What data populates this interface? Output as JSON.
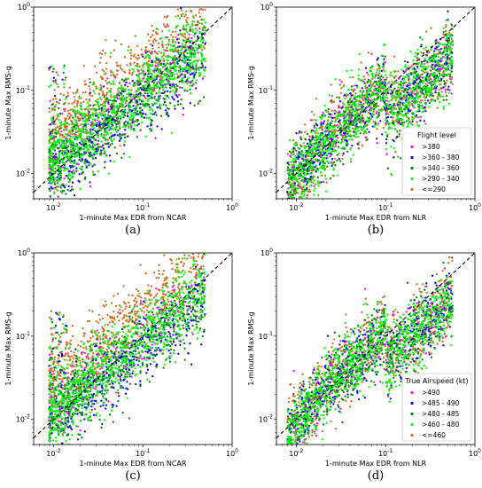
{
  "chart_data": [
    {
      "id": "a",
      "type": "scatter",
      "panel_label": "(a)",
      "xlabel": "1-minute Max EDR from NCAR",
      "ylabel": "1-minute Max RMS-g",
      "xscale": "log",
      "yscale": "log",
      "xlim": [
        0.006,
        1
      ],
      "ylim": [
        0.005,
        1
      ],
      "x_tick_labels": [
        "10^-2",
        "10^-1",
        "10^0"
      ],
      "y_tick_labels": [
        "10^-2",
        "10^-1",
        "10^0"
      ],
      "reference_line": "y = x (dashed black)",
      "legend": null,
      "series": [
        {
          "name": ">380",
          "color": "#ff00ff"
        },
        {
          "name": ">360 - 380",
          "color": "#0000ff"
        },
        {
          "name": ">340 - 360",
          "color": "#008000"
        },
        {
          "name": ">290 - 340",
          "color": "#00ff00"
        },
        {
          "name": "<=290",
          "color": "#d2691e"
        }
      ]
    },
    {
      "id": "b",
      "type": "scatter",
      "panel_label": "(b)",
      "xlabel": "1-minute Max EDR from NLR",
      "ylabel": "1-minute Max RMS-g",
      "xscale": "log",
      "yscale": "log",
      "xlim": [
        0.006,
        1
      ],
      "ylim": [
        0.005,
        1
      ],
      "x_tick_labels": [
        "10^-2",
        "10^-1",
        "10^0"
      ],
      "y_tick_labels": [
        "10^-2",
        "10^-1",
        "10^0"
      ],
      "reference_line": "y = x (dashed black)",
      "legend": {
        "title": "Flight level",
        "placement": "lower-right",
        "entries": [
          ">380",
          ">360 - 380",
          ">340 - 360",
          ">290 - 340",
          "<=290"
        ]
      },
      "series": [
        {
          "name": ">380",
          "color": "#ff00ff"
        },
        {
          "name": ">360 - 380",
          "color": "#0000ff"
        },
        {
          "name": ">340 - 360",
          "color": "#008000"
        },
        {
          "name": ">290 - 340",
          "color": "#00ff00"
        },
        {
          "name": "<=290",
          "color": "#d2691e"
        }
      ]
    },
    {
      "id": "c",
      "type": "scatter",
      "panel_label": "(c)",
      "xlabel": "1-minute Max EDR from NCAR",
      "ylabel": "1-minute Max RMS-g",
      "xscale": "log",
      "yscale": "log",
      "xlim": [
        0.006,
        1
      ],
      "ylim": [
        0.005,
        1
      ],
      "x_tick_labels": [
        "10^-2",
        "10^-1",
        "10^0"
      ],
      "y_tick_labels": [
        "10^-2",
        "10^-1",
        "10^0"
      ],
      "reference_line": "y = x (dashed black)",
      "legend": null,
      "series": [
        {
          "name": ">490",
          "color": "#ff00ff"
        },
        {
          "name": ">485 - 490",
          "color": "#0000ff"
        },
        {
          "name": ">480 - 485",
          "color": "#008000"
        },
        {
          "name": ">460 - 480",
          "color": "#00ff00"
        },
        {
          "name": "<=460",
          "color": "#d2691e"
        }
      ]
    },
    {
      "id": "d",
      "type": "scatter",
      "panel_label": "(d)",
      "xlabel": "1-minute Max EDR from NLR",
      "ylabel": "1-minute Max RMS-g",
      "xscale": "log",
      "yscale": "log",
      "xlim": [
        0.006,
        1
      ],
      "ylim": [
        0.005,
        1
      ],
      "x_tick_labels": [
        "10^-2",
        "10^-1",
        "10^0"
      ],
      "y_tick_labels": [
        "10^-2",
        "10^-1",
        "10^0"
      ],
      "reference_line": "y = x (dashed black)",
      "legend": {
        "title": "True Airspeed (kt)",
        "placement": "lower-right",
        "entries": [
          ">490",
          ">485 - 490",
          ">480 - 485",
          ">460 - 480",
          "<=460"
        ]
      },
      "series": [
        {
          "name": ">490",
          "color": "#ff00ff"
        },
        {
          "name": ">485 - 490",
          "color": "#0000ff"
        },
        {
          "name": ">480 - 485",
          "color": "#008000"
        },
        {
          "name": ">460 - 480",
          "color": "#00ff00"
        },
        {
          "name": "<=460",
          "color": "#d2691e"
        }
      ]
    }
  ]
}
